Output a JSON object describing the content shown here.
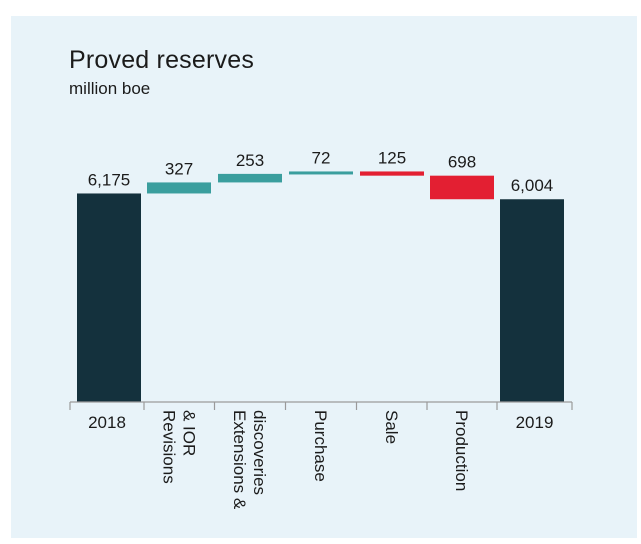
{
  "title": "Proved reserves",
  "subtitle": "million boe",
  "chart_data": {
    "type": "bar",
    "subtype": "waterfall",
    "title": "Proved reserves",
    "subtitle": "million boe",
    "categories": [
      "2018",
      "Revisions & IOR",
      "Extensions & discoveries",
      "Purchase",
      "Sale",
      "Production",
      "2019"
    ],
    "category_lines": [
      [
        "2018"
      ],
      [
        "Revisions",
        "& IOR"
      ],
      [
        "Extensions &",
        "discoveries"
      ],
      [
        "Purchase"
      ],
      [
        "Sale"
      ],
      [
        "Production"
      ],
      [
        "2019"
      ]
    ],
    "values": [
      6175,
      327,
      253,
      72,
      -125,
      -698,
      6004
    ],
    "bar_kinds": [
      "total",
      "increase",
      "increase",
      "increase",
      "decrease",
      "decrease",
      "total"
    ],
    "value_labels": [
      "6,175",
      "327",
      "253",
      "72",
      "125",
      "698",
      "6,004"
    ],
    "colors": {
      "total": "#14313d",
      "increase": "#3a9e9e",
      "decrease": "#e31f32"
    },
    "grid": false,
    "legend": "none"
  }
}
